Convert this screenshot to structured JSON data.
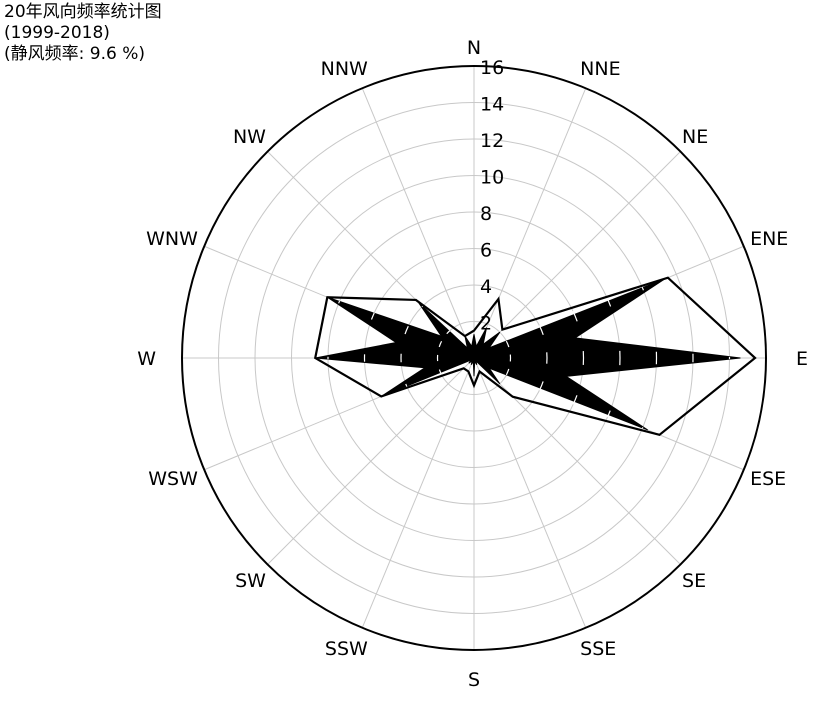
{
  "chart_data": {
    "type": "radar",
    "title": "20年风向频率统计图",
    "subtitle": "(1999-2018)",
    "note": "(静风频率: 9.6 %)",
    "directions": [
      "N",
      "NNE",
      "NE",
      "ENE",
      "E",
      "ESE",
      "SE",
      "SSE",
      "S",
      "SSW",
      "SW",
      "WSW",
      "W",
      "WNW",
      "NW",
      "NNW"
    ],
    "r_ticks": [
      "2",
      "4",
      "6",
      "8",
      "10",
      "12",
      "14",
      "16"
    ],
    "rlim": [
      0,
      16
    ],
    "grid": true,
    "series": [
      {
        "values": [
          1.5,
          3.5,
          2.2,
          11.5,
          15.4,
          11.0,
          3.0,
          0.8,
          1.5,
          0.8,
          0.8,
          5.5,
          8.7,
          8.7,
          4.5,
          1.3
        ],
        "style": "outline"
      },
      {
        "values": [
          1.3,
          1.8,
          2.0,
          11.3,
          14.6,
          10.3,
          2.0,
          0.4,
          1.0,
          0.4,
          0.4,
          5.5,
          8.7,
          8.7,
          4.3,
          1.3
        ],
        "style": "filled-wedges"
      }
    ]
  }
}
